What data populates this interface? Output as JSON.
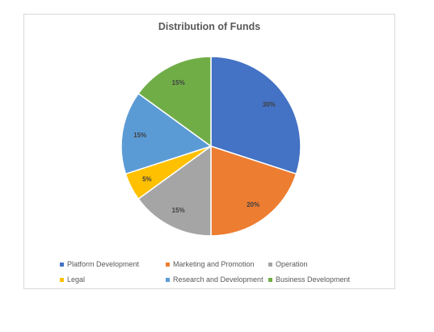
{
  "chart_data": {
    "type": "pie",
    "title": "Distribution of Funds",
    "categories": [
      "Platform Development",
      "Marketing and Promotion",
      "Operation",
      "Legal",
      "Research and Development",
      "Business Development"
    ],
    "values": [
      30,
      20,
      15,
      5,
      15,
      15
    ],
    "data_labels": [
      "30%",
      "20%",
      "15%",
      "5%",
      "15%",
      "15%"
    ],
    "colors": [
      "#4472c4",
      "#ed7d31",
      "#a5a5a5",
      "#ffc000",
      "#5b9bd5",
      "#70ad47"
    ],
    "start_angle": "top",
    "direction": "clockwise",
    "legend_position": "bottom"
  }
}
